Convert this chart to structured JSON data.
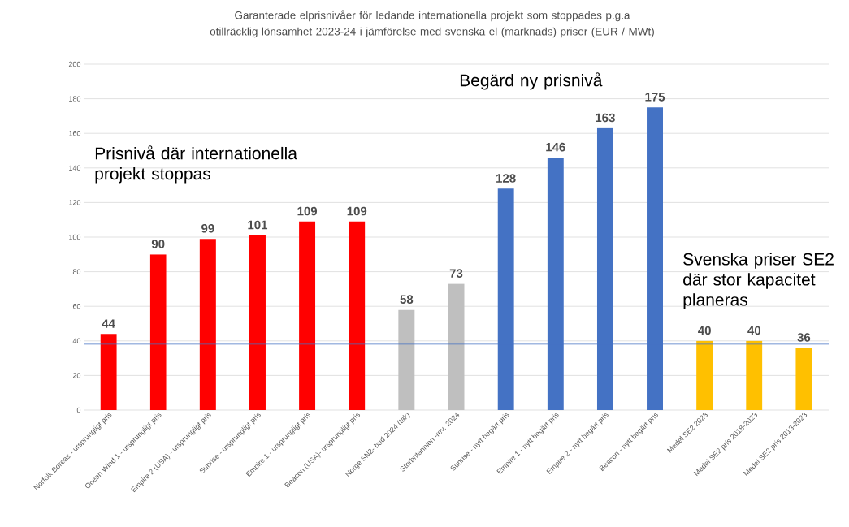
{
  "chart_data": {
    "type": "bar",
    "title": "Garanterade elprisnivåer för ledande internationella projekt som stoppades p.g.a  otillräcklig lönsamhet 2023-24  i jämförelse med svenska el (marknads) priser (EUR / MWt)",
    "categories": [
      "Norfolk Boreas - ursprungligt pris",
      "Ocean Wind 1 - ursprungligt pris",
      "Empire 2 (USA) - ursprungligt pris",
      "Sunrise - ursprungligt pris",
      "Empire 1 - ursprungligt pris",
      "Beacon (USA)- ursprungligt pris",
      "Norge SN2- bud 2024 (tak)",
      "Storbritannien -rev. 2024",
      "Sunrise - nytt begärt pris",
      "Empire 1 - nytt begärt pris",
      "Empire 2  - nytt begärt pris",
      "Beacon - nytt begärt pris",
      "Medel SE2 2023",
      "Medel SE2 pris 2018-2023",
      "Medel SE2 pris 2013-2023"
    ],
    "values": [
      44,
      90,
      99,
      101,
      109,
      109,
      58,
      73,
      128,
      146,
      163,
      175,
      40,
      40,
      36
    ],
    "colors": [
      "#ff0000",
      "#ff0000",
      "#ff0000",
      "#ff0000",
      "#ff0000",
      "#ff0000",
      "#bfbfbf",
      "#bfbfbf",
      "#4472c4",
      "#4472c4",
      "#4472c4",
      "#4472c4",
      "#ffc000",
      "#ffc000",
      "#ffc000"
    ],
    "ylim": [
      0,
      200
    ],
    "yticks": [
      0,
      20,
      40,
      60,
      80,
      100,
      120,
      140,
      160,
      180,
      200
    ],
    "grid": "y",
    "data_labels": true,
    "ref_lines": [
      {
        "axis": "y",
        "value": 38,
        "color": "#4472c4"
      }
    ],
    "annotations": [
      "Prisnivå där internationella projekt stoppas",
      "Begärd ny prisnivå",
      "Svenska priser SE2 där stor kapacitet planeras"
    ]
  }
}
